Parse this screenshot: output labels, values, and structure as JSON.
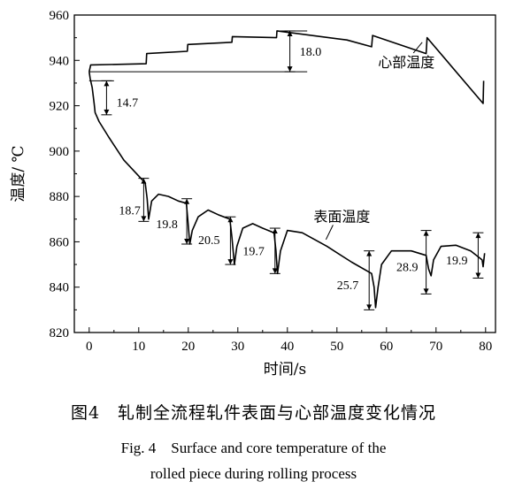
{
  "chart_data": {
    "type": "line",
    "xlabel": "时间/s",
    "ylabel": "温度/ ℃",
    "xlim": [
      -3,
      82
    ],
    "ylim": [
      820,
      960
    ],
    "xticks": [
      "0",
      "10",
      "20",
      "30",
      "40",
      "50",
      "60",
      "70",
      "80"
    ],
    "xtick_values": [
      0,
      10,
      20,
      30,
      40,
      50,
      60,
      70,
      80
    ],
    "yticks": [
      "820",
      "840",
      "860",
      "880",
      "900",
      "920",
      "940",
      "960"
    ],
    "ytick_values": [
      820,
      840,
      860,
      880,
      900,
      920,
      940,
      960
    ],
    "series": [
      {
        "name": "心部温度",
        "points": [
          [
            0,
            935
          ],
          [
            0.3,
            938
          ],
          [
            11.5,
            938.5
          ],
          [
            11.6,
            943
          ],
          [
            19.8,
            944
          ],
          [
            19.9,
            947
          ],
          [
            28.8,
            948
          ],
          [
            28.9,
            950.5
          ],
          [
            37.8,
            950
          ],
          [
            37.9,
            953
          ],
          [
            52,
            949
          ],
          [
            57,
            946
          ],
          [
            57.2,
            951
          ],
          [
            68,
            943
          ],
          [
            68.2,
            950
          ],
          [
            79.5,
            921
          ],
          [
            79.6,
            931
          ]
        ]
      },
      {
        "name": "表面温度",
        "points": [
          [
            0,
            935
          ],
          [
            0.2,
            932
          ],
          [
            0.6,
            928
          ],
          [
            1,
            921
          ],
          [
            1.2,
            917
          ],
          [
            2,
            913
          ],
          [
            4,
            906
          ],
          [
            7,
            896
          ],
          [
            10,
            889
          ],
          [
            11.3,
            886
          ],
          [
            11.7,
            879
          ],
          [
            12,
            870
          ],
          [
            12.6,
            878
          ],
          [
            14,
            881
          ],
          [
            16,
            880
          ],
          [
            18,
            878
          ],
          [
            19.6,
            877
          ],
          [
            19.9,
            870
          ],
          [
            20.3,
            859
          ],
          [
            20.8,
            865
          ],
          [
            22,
            871
          ],
          [
            24,
            874
          ],
          [
            26,
            872
          ],
          [
            28.4,
            870
          ],
          [
            28.8,
            862
          ],
          [
            29.3,
            850
          ],
          [
            29.8,
            858
          ],
          [
            31,
            866
          ],
          [
            33,
            868
          ],
          [
            35,
            866
          ],
          [
            37.3,
            864
          ],
          [
            37.7,
            856
          ],
          [
            38,
            846
          ],
          [
            38.6,
            856
          ],
          [
            40,
            865
          ],
          [
            43,
            864
          ],
          [
            48,
            858
          ],
          [
            53,
            851
          ],
          [
            57,
            846
          ],
          [
            57.5,
            840
          ],
          [
            57.8,
            831
          ],
          [
            58.3,
            840
          ],
          [
            59,
            850
          ],
          [
            61,
            856
          ],
          [
            65,
            856
          ],
          [
            68,
            854
          ],
          [
            68.5,
            848
          ],
          [
            69,
            845
          ],
          [
            69.5,
            852
          ],
          [
            71,
            858
          ],
          [
            74,
            858.5
          ],
          [
            77,
            856
          ],
          [
            79.3,
            852
          ],
          [
            79.5,
            849
          ],
          [
            79.8,
            855
          ]
        ]
      }
    ],
    "series_labels": [
      {
        "text": "心部温度",
        "x": 64,
        "y": 937
      },
      {
        "text": "表面温度",
        "x": 51,
        "y": 869
      }
    ],
    "annotations": [
      {
        "text": "18.0",
        "value": 18.0,
        "x": 40.5,
        "y_low": 935,
        "y_high": 953,
        "label_x": 42.5,
        "label_y": 944
      },
      {
        "text": "14.7",
        "value": 14.7,
        "x": 3.5,
        "y_low": 916,
        "y_high": 931,
        "label_x": 5.5,
        "label_y": 921.5
      },
      {
        "text": "18.7",
        "value": 18.7,
        "x": 11,
        "y_low": 869,
        "y_high": 888,
        "label_x": 6,
        "label_y": 874
      },
      {
        "text": "19.8",
        "value": 19.8,
        "x": 19.7,
        "y_low": 859,
        "y_high": 879,
        "label_x": 13.5,
        "label_y": 868
      },
      {
        "text": "20.5",
        "value": 20.5,
        "x": 28.5,
        "y_low": 850,
        "y_high": 871,
        "label_x": 22,
        "label_y": 861
      },
      {
        "text": "19.7",
        "value": 19.7,
        "x": 37.5,
        "y_low": 846,
        "y_high": 866,
        "label_x": 31,
        "label_y": 856
      },
      {
        "text": "25.7",
        "value": 25.7,
        "x": 56.5,
        "y_low": 830,
        "y_high": 856,
        "label_x": 50,
        "label_y": 841
      },
      {
        "text": "28.9",
        "value": 28.9,
        "x": 68,
        "y_low": 837,
        "y_high": 865,
        "label_x": 62,
        "label_y": 849
      },
      {
        "text": "19.9",
        "value": 19.9,
        "x": 78.5,
        "y_low": 844,
        "y_high": 864,
        "label_x": 72,
        "label_y": 852
      }
    ],
    "reference_lines": [
      {
        "x1": 0,
        "x2": 44,
        "y": 935
      },
      {
        "x1": 0,
        "x2": 5,
        "y": 931
      },
      {
        "x1": 38,
        "x2": 44,
        "y": 953
      }
    ]
  },
  "caption": {
    "zh": "图4　轧制全流程轧件表面与心部温度变化情况",
    "en_line1": "Fig. 4　Surface and core temperature of the",
    "en_line2": "rolled piece during rolling process"
  }
}
